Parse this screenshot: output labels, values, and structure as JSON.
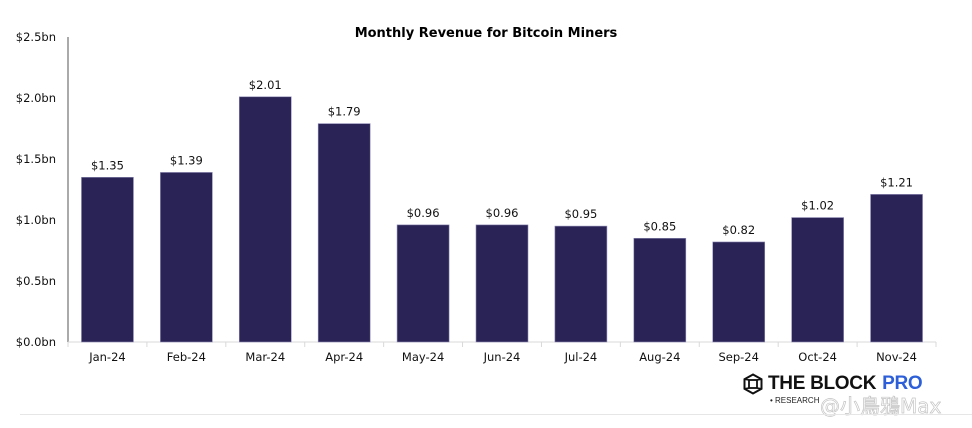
{
  "chart_data": {
    "type": "bar",
    "title": "Monthly Revenue for Bitcoin Miners",
    "xlabel": "",
    "ylabel": "",
    "categories": [
      "Jan-24",
      "Feb-24",
      "Mar-24",
      "Apr-24",
      "May-24",
      "Jun-24",
      "Jul-24",
      "Aug-24",
      "Sep-24",
      "Oct-24",
      "Nov-24"
    ],
    "values": [
      1.35,
      1.39,
      2.01,
      1.79,
      0.96,
      0.96,
      0.95,
      0.85,
      0.82,
      1.02,
      1.21
    ],
    "data_labels": [
      "$1.35",
      "$1.39",
      "$2.01",
      "$1.79",
      "$0.96",
      "$0.96",
      "$0.95",
      "$0.85",
      "$0.82",
      "$1.02",
      "$1.21"
    ],
    "unit": "USD billions",
    "ylim": [
      0,
      2.5
    ],
    "yticks": [
      0,
      0.5,
      1.0,
      1.5,
      2.0,
      2.5
    ],
    "ytick_labels": [
      "$0.0bn",
      "$0.5bn",
      "$1.0bn",
      "$1.5bn",
      "$2.0bn",
      "$2.5bn"
    ],
    "grid": false,
    "legend": "none",
    "bar_color": "#2a2456"
  },
  "branding": {
    "logo_main": "THE BLOCK",
    "logo_accent": "PRO",
    "logo_sub": "• RESEARCH",
    "accent_color": "#2d5fd8"
  },
  "watermark": "@小鳥鴉Max"
}
